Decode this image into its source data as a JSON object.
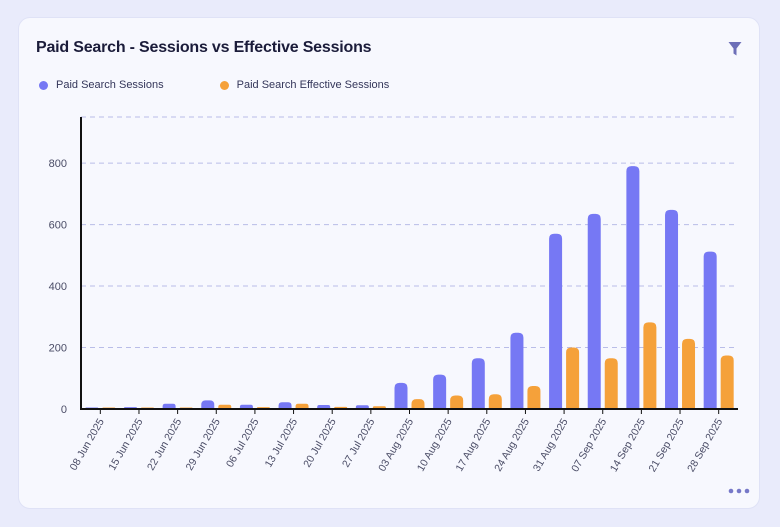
{
  "card": {
    "title": "Paid Search - Sessions vs Effective Sessions",
    "filter_icon": "filter-icon",
    "more_icon": "more-horizontal-icon"
  },
  "colors": {
    "sessions": "#7678f4",
    "effective": "#f5a13a",
    "grid": "#b9bde8",
    "axis": "#111111",
    "tick_text": "#4a4c66"
  },
  "chart_data": {
    "type": "bar",
    "title": "Paid Search - Sessions vs Effective Sessions",
    "xlabel": "",
    "ylabel": "",
    "ylim": [
      0,
      950
    ],
    "yticks": [
      0,
      200,
      400,
      600,
      800
    ],
    "grid": true,
    "legend_position": "top-left",
    "categories": [
      "08 Jun 2025",
      "15 Jun 2025",
      "22 Jun 2025",
      "29 Jun 2025",
      "06 Jul 2025",
      "13 Jul 2025",
      "20 Jul 2025",
      "27 Jul 2025",
      "03 Aug 2025",
      "10 Aug 2025",
      "17 Aug 2025",
      "24 Aug 2025",
      "31 Aug 2025",
      "07 Sep 2025",
      "14 Sep 2025",
      "21 Sep 2025",
      "28 Sep 2025"
    ],
    "series": [
      {
        "name": "Paid Search Sessions",
        "values": [
          3,
          6,
          17,
          28,
          14,
          22,
          13,
          12,
          85,
          112,
          165,
          248,
          570,
          635,
          790,
          648,
          512
        ]
      },
      {
        "name": "Paid Search Effective Sessions",
        "values": [
          1,
          2,
          4,
          14,
          6,
          17,
          7,
          9,
          32,
          44,
          48,
          75,
          200,
          165,
          282,
          228,
          174
        ]
      }
    ]
  }
}
